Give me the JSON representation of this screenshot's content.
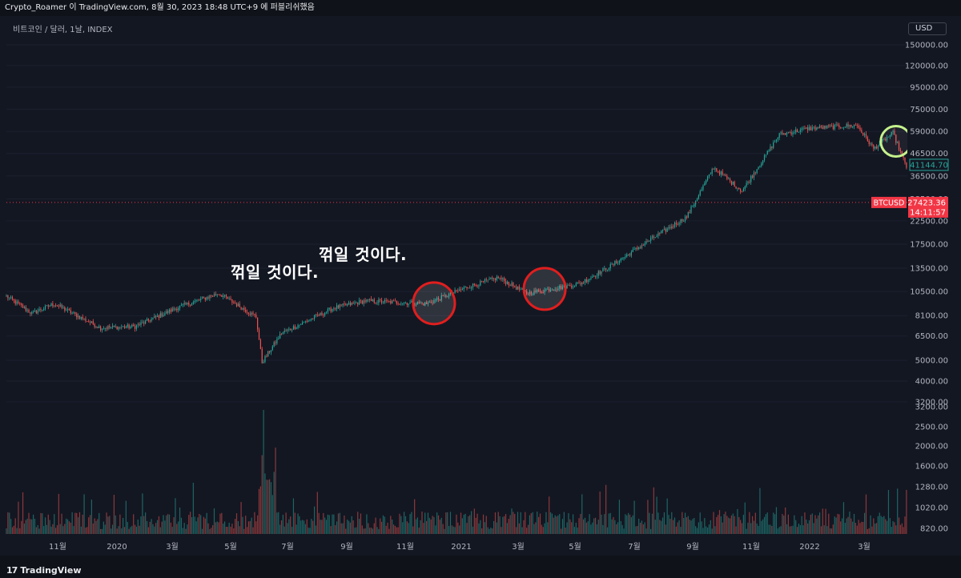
{
  "header": {
    "caption": "Crypto_Roamer 이 TradingView.com, 8월 30, 2023 18:48 UTC+9 에 퍼블리쉬했음"
  },
  "symbol": {
    "description": "비트코인 / 달러, 1날, INDEX"
  },
  "currency_button": "USD",
  "annotations": {
    "label_1": "꺾일 것이다.",
    "label_2": "꺾일 것이다."
  },
  "footer": {
    "brand": "TradingView",
    "brand_mark": "17"
  },
  "price_tags": {
    "current_symbol": "BTCUSD",
    "current_price": "27423.36",
    "countdown": "14:11:57",
    "last_visible_price": "41144.70"
  },
  "colors": {
    "background": "#131722",
    "up": "#26a69a",
    "down": "#ef5350",
    "price_line": "#f23645",
    "circle_red": "#e01e1e",
    "circle_green": "#c5f28c"
  },
  "chart_data": {
    "type": "candlestick",
    "y_scale": "log",
    "ylim": [
      3600,
      160000
    ],
    "y_ticks": [
      "150000.00",
      "120000.00",
      "95000.00",
      "75000.00",
      "59000.00",
      "46500.00",
      "36500.00",
      "28500.00",
      "22500.00",
      "17500.00",
      "13500.00",
      "10500.00",
      "8100.00",
      "6500.00",
      "5000.00",
      "4000.00",
      "3200.00"
    ],
    "volume_ticks": [
      "3200.00",
      "2500.00",
      "2000.00",
      "1600.00",
      "1280.00",
      "1020.00",
      "820.00"
    ],
    "x_ticks": [
      "11월",
      "2020",
      "3월",
      "5월",
      "7월",
      "9월",
      "11월",
      "2021",
      "3월",
      "5월",
      "7월",
      "9월",
      "11월",
      "2022",
      "3월"
    ],
    "price_line": 27423.36,
    "last_close": 41144.7,
    "anchor_closes": [
      [
        "2019-09-23",
        10000
      ],
      [
        "2019-10-10",
        8300
      ],
      [
        "2019-10-25",
        9200
      ],
      [
        "2019-11-25",
        7100
      ],
      [
        "2019-12-18",
        7200
      ],
      [
        "2020-01-15",
        8800
      ],
      [
        "2020-02-12",
        10300
      ],
      [
        "2020-03-08",
        8000
      ],
      [
        "2020-03-12",
        4900
      ],
      [
        "2020-03-25",
        6700
      ],
      [
        "2020-04-29",
        8800
      ],
      [
        "2020-05-20",
        9500
      ],
      [
        "2020-06-30",
        9200
      ],
      [
        "2020-07-27",
        11000
      ],
      [
        "2020-08-17",
        12200
      ],
      [
        "2020-09-05",
        10300
      ],
      [
        "2020-10-10",
        11400
      ],
      [
        "2020-10-31",
        13800
      ],
      [
        "2020-11-30",
        19000
      ],
      [
        "2020-12-21",
        23500
      ],
      [
        "2021-01-08",
        40000
      ],
      [
        "2021-01-27",
        31000
      ],
      [
        "2021-02-21",
        57000
      ],
      [
        "2021-03-13",
        61000
      ],
      [
        "2021-04-14",
        63000
      ],
      [
        "2021-04-25",
        49000
      ],
      [
        "2021-05-08",
        58000
      ],
      [
        "2021-05-19",
        37000
      ],
      [
        "2021-06-20",
        35500
      ],
      [
        "2021-07-20",
        29800
      ],
      [
        "2021-08-15",
        47000
      ],
      [
        "2021-09-06",
        52000
      ],
      [
        "2021-09-21",
        40500
      ],
      [
        "2021-10-20",
        65000
      ],
      [
        "2021-11-10",
        67500
      ],
      [
        "2021-12-04",
        49000
      ],
      [
        "2021-12-27",
        50500
      ],
      [
        "2022-01-22",
        35000
      ],
      [
        "2022-02-10",
        44000
      ],
      [
        "2022-02-24",
        37000
      ],
      [
        "2022-03-28",
        47500
      ],
      [
        "2022-04-10",
        41144.7
      ]
    ],
    "annotations_marked": [
      {
        "date": "2020-07-05",
        "price": 9250,
        "marker": "red circle"
      },
      {
        "date": "2020-09-17",
        "price": 10800,
        "marker": "red circle"
      },
      {
        "date": "2021-05-10",
        "price": 53000,
        "marker": "green circle"
      }
    ]
  }
}
